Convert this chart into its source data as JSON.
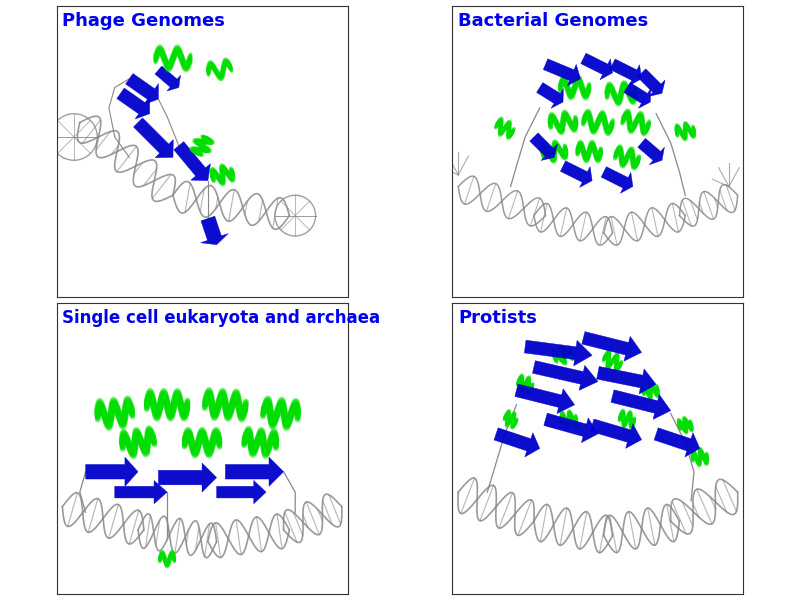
{
  "panels": [
    {
      "label": "Phage Genomes",
      "col": 0,
      "row": 0
    },
    {
      "label": "Bacterial Genomes",
      "col": 1,
      "row": 0
    },
    {
      "label": "Single cell eukaryota and archaea",
      "col": 0,
      "row": 1
    },
    {
      "label": "Protists",
      "col": 1,
      "row": 1
    }
  ],
  "label_color": "#0000EE",
  "label_fontsize": 13,
  "background_color": "#FFFFFF",
  "dna_color": "#888888",
  "helix_color": "#00DD00",
  "sheet_color": "#0000CC",
  "loop_color": "#555555",
  "border_color": "#333333",
  "fig_width": 8.0,
  "fig_height": 6.0
}
